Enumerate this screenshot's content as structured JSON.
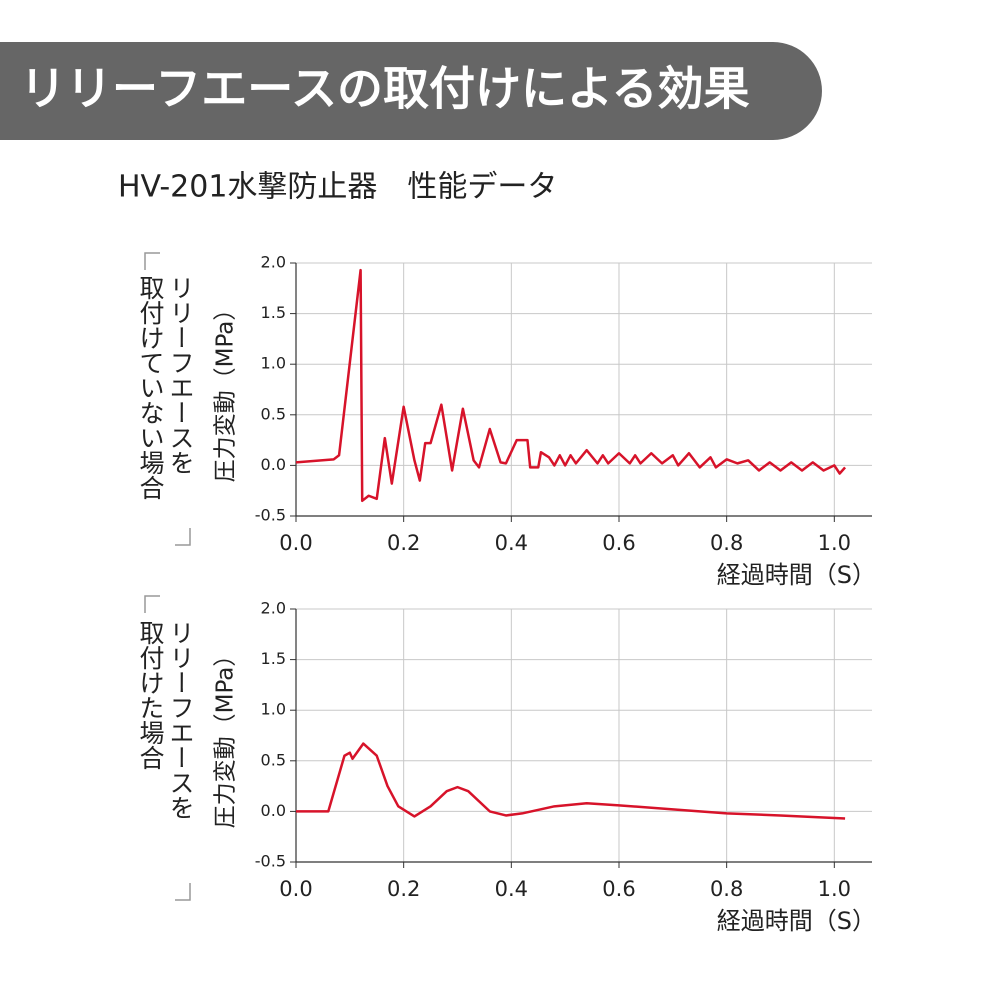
{
  "title": "リリーフエースの取付けによる効果",
  "subtitle": "HV-201水撃防止器　性能データ",
  "chart_data": [
    {
      "type": "line",
      "side_label": [
        "リリーフエースを",
        "取付けていない場合"
      ],
      "ylabel": "圧力変動（MPa）",
      "xlabel": "経過時間（S）",
      "xlim": [
        0,
        1.07
      ],
      "ylim": [
        -0.5,
        2.0
      ],
      "xticks": [
        {
          "value": 0,
          "label": "0.0"
        },
        0.2,
        0.4,
        0.6,
        0.8,
        {
          "value": 1,
          "label": "1.0"
        }
      ],
      "yticks": [
        {
          "value": 2,
          "label": "2.0"
        },
        1.5,
        {
          "value": 1,
          "label": "1.0"
        },
        0.5,
        {
          "value": 0,
          "label": "0.0"
        },
        -0.5
      ],
      "grid": true,
      "x": [
        0,
        0.07,
        0.08,
        0.12,
        0.123,
        0.135,
        0.15,
        0.165,
        0.178,
        0.2,
        0.22,
        0.23,
        0.24,
        0.25,
        0.27,
        0.29,
        0.31,
        0.33,
        0.34,
        0.36,
        0.38,
        0.39,
        0.41,
        0.43,
        0.435,
        0.45,
        0.455,
        0.47,
        0.48,
        0.49,
        0.5,
        0.51,
        0.52,
        0.54,
        0.56,
        0.57,
        0.58,
        0.6,
        0.62,
        0.63,
        0.64,
        0.66,
        0.68,
        0.7,
        0.71,
        0.73,
        0.75,
        0.77,
        0.78,
        0.8,
        0.82,
        0.84,
        0.86,
        0.88,
        0.9,
        0.92,
        0.94,
        0.96,
        0.98,
        1.0,
        1.01,
        1.02
      ],
      "series": [
        {
          "color": "#d7132a",
          "values": [
            0.03,
            0.06,
            0.1,
            1.93,
            -0.35,
            -0.3,
            -0.33,
            0.27,
            -0.18,
            0.58,
            0.05,
            -0.15,
            0.22,
            0.22,
            0.6,
            -0.05,
            0.56,
            0.05,
            -0.02,
            0.36,
            0.03,
            0.02,
            0.25,
            0.25,
            -0.02,
            -0.02,
            0.13,
            0.08,
            0.0,
            0.1,
            0.0,
            0.1,
            0.02,
            0.15,
            0.02,
            0.1,
            0.02,
            0.12,
            0.02,
            0.1,
            0.02,
            0.12,
            0.02,
            0.1,
            0.0,
            0.12,
            -0.02,
            0.08,
            -0.02,
            0.06,
            0.02,
            0.05,
            -0.05,
            0.03,
            -0.05,
            0.03,
            -0.05,
            0.03,
            -0.05,
            0.0,
            -0.08,
            -0.02
          ]
        }
      ]
    },
    {
      "type": "line",
      "side_label": [
        "リリーフエースを",
        "取付けた場合"
      ],
      "ylabel": "圧力変動（MPa）",
      "xlabel": "経過時間（S）",
      "xlim": [
        0,
        1.07
      ],
      "ylim": [
        -0.5,
        2.0
      ],
      "xticks": [
        {
          "value": 0,
          "label": "0.0"
        },
        0.2,
        0.4,
        0.6,
        0.8,
        {
          "value": 1,
          "label": "1.0"
        }
      ],
      "yticks": [
        {
          "value": 2,
          "label": "2.0"
        },
        1.5,
        {
          "value": 1,
          "label": "1.0"
        },
        0.5,
        {
          "value": 0,
          "label": "0.0"
        },
        -0.5
      ],
      "grid": true,
      "x": [
        0,
        0.06,
        0.09,
        0.1,
        0.105,
        0.125,
        0.15,
        0.17,
        0.19,
        0.22,
        0.25,
        0.28,
        0.3,
        0.32,
        0.36,
        0.39,
        0.42,
        0.48,
        0.54,
        0.6,
        0.7,
        0.8,
        0.9,
        1.02
      ],
      "series": [
        {
          "color": "#d7132a",
          "values": [
            0,
            0,
            0.55,
            0.58,
            0.52,
            0.67,
            0.55,
            0.25,
            0.05,
            -0.05,
            0.05,
            0.2,
            0.24,
            0.2,
            0,
            -0.04,
            -0.02,
            0.05,
            0.08,
            0.06,
            0.02,
            -0.02,
            -0.04,
            -0.07
          ]
        }
      ]
    }
  ]
}
